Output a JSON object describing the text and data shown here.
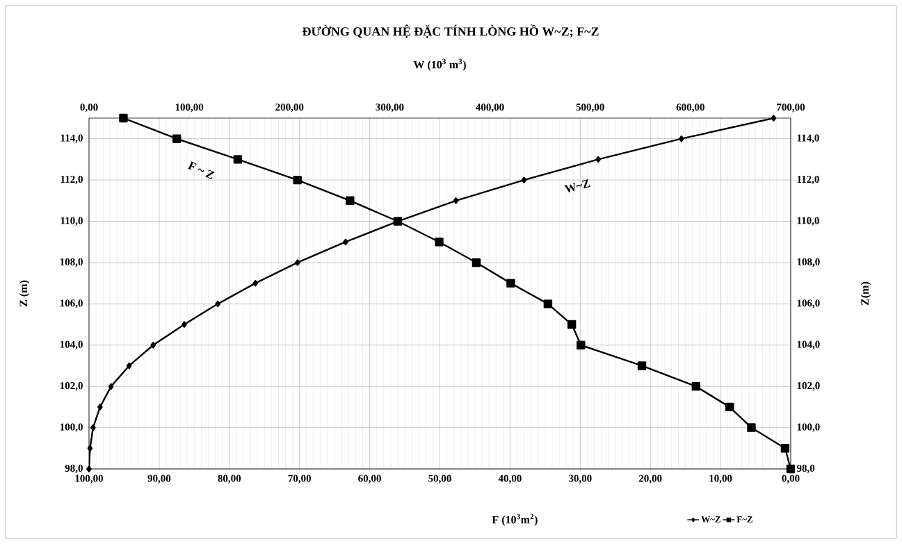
{
  "chart_data": {
    "type": "line",
    "title": "ĐƯỜNG  QUAN HỆ ĐẶC TÍNH LÒNG HỒ W~Z; F~Z",
    "xlabel": "F (10$^{3}$m$^{2}$)",
    "x2label": "W (10$^{3}$ m$^{3}$)",
    "ylabel": "Z (m)",
    "y2label": "Z(m)",
    "annotations": [
      "F ~ Z",
      "W~Z"
    ],
    "series": [
      {
        "name": "W~Z",
        "color": "#000000",
        "marker": "diamond",
        "axis": "x2",
        "x": [
          0,
          1,
          4,
          11,
          22,
          40,
          64,
          95,
          128.5,
          166,
          208,
          256,
          308,
          366,
          434,
          508,
          591,
          683
        ],
        "values": [
          98,
          99,
          100,
          101,
          102,
          103,
          104,
          105,
          106,
          107,
          108,
          109,
          110,
          111,
          112,
          113,
          114,
          115
        ]
      },
      {
        "name": "F~Z",
        "color": "#000000",
        "marker": "square",
        "x": [
          95.1,
          87.5,
          78.8,
          70.3,
          62.8,
          56.0,
          50.1,
          44.8,
          39.9,
          34.6,
          31.2,
          29.9,
          21.2,
          13.5,
          8.7,
          5.6,
          0.8,
          0
        ],
        "values": [
          115,
          114,
          113,
          112,
          111,
          110,
          109,
          108,
          107,
          106,
          105,
          104,
          103,
          102,
          101,
          100,
          99,
          98
        ]
      }
    ],
    "xlim": [
      100,
      0
    ],
    "xticks": [
      {
        "value": 100,
        "label": "100,00"
      },
      {
        "value": 90,
        "label": "90,00"
      },
      {
        "value": 80,
        "label": "80,00"
      },
      {
        "value": 70,
        "label": "70,00"
      },
      {
        "value": 60,
        "label": "60,00"
      },
      {
        "value": 50,
        "label": "50,00"
      },
      {
        "value": 40,
        "label": "40,00"
      },
      {
        "value": 30,
        "label": "30,00"
      },
      {
        "value": 20,
        "label": "20,00"
      },
      {
        "value": 10,
        "label": "10,00"
      },
      {
        "value": 0,
        "label": "0,00"
      }
    ],
    "x2lim": [
      0,
      700
    ],
    "x2ticks": [
      {
        "value": 0,
        "label": "0,00"
      },
      {
        "value": 100,
        "label": "100,00"
      },
      {
        "value": 200,
        "label": "200,00"
      },
      {
        "value": 300,
        "label": "300,00"
      },
      {
        "value": 400,
        "label": "400,00"
      },
      {
        "value": 500,
        "label": "500,00"
      },
      {
        "value": 600,
        "label": "600,00"
      },
      {
        "value": 700,
        "label": "700,00"
      }
    ],
    "ylim": [
      98,
      115
    ],
    "yticks": [
      {
        "value": 98,
        "label": "98,0"
      },
      {
        "value": 100,
        "label": "100,0"
      },
      {
        "value": 102,
        "label": "102,0"
      },
      {
        "value": 104,
        "label": "104,0"
      },
      {
        "value": 106,
        "label": "106,0"
      },
      {
        "value": 108,
        "label": "108,0"
      },
      {
        "value": 110,
        "label": "110,0"
      },
      {
        "value": 112,
        "label": "112,0"
      },
      {
        "value": 114,
        "label": "114,0"
      }
    ],
    "y2lim": [
      98,
      115
    ],
    "y2ticks": [
      {
        "value": 98,
        "label": "98,0"
      },
      {
        "value": 100,
        "label": "100,0"
      },
      {
        "value": 102,
        "label": "102,0"
      },
      {
        "value": 104,
        "label": "104,0"
      },
      {
        "value": 106,
        "label": "106,0"
      },
      {
        "value": 108,
        "label": "108,0"
      },
      {
        "value": 110,
        "label": "110,0"
      },
      {
        "value": 112,
        "label": "112,0"
      },
      {
        "value": 114,
        "label": "114,0"
      }
    ],
    "grid": true,
    "legend": "bottom",
    "line_style": "solid"
  }
}
